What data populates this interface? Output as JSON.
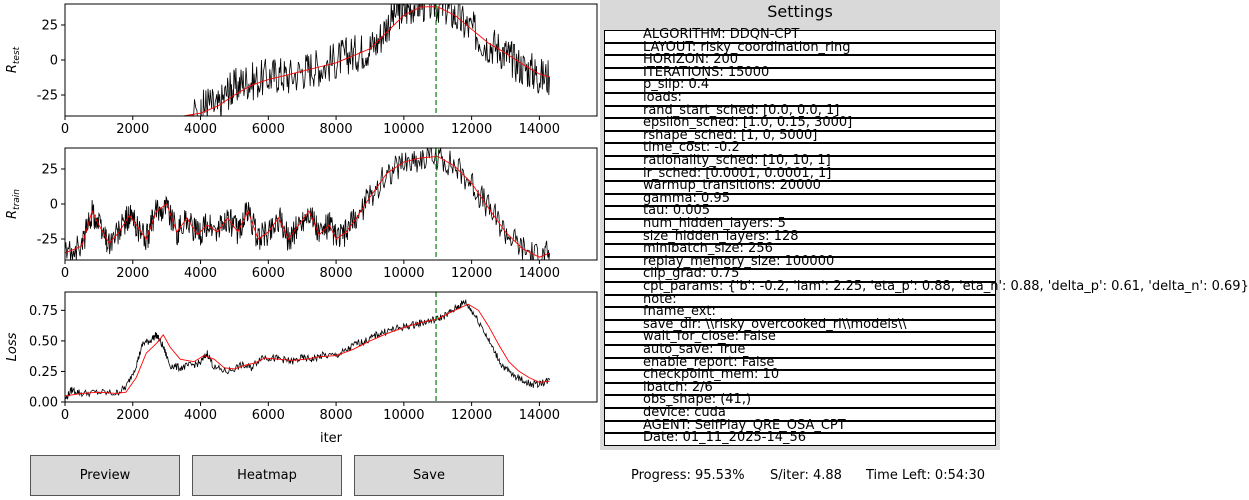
{
  "chart_data": [
    {
      "type": "line",
      "ylabel": "R_test",
      "xlim": [
        0,
        15700
      ],
      "ylim": [
        -40,
        40
      ],
      "xticks": [
        0,
        2000,
        4000,
        6000,
        8000,
        10000,
        12000,
        14000
      ],
      "yticks": [
        -25,
        0,
        25
      ],
      "vline_x": 10950,
      "raw_points": [
        [
          0,
          -40
        ],
        [
          500,
          -40
        ],
        [
          1000,
          -40
        ],
        [
          1500,
          -40
        ],
        [
          2000,
          -40
        ],
        [
          2300,
          -40
        ],
        [
          2500,
          -40
        ],
        [
          3000,
          -40
        ],
        [
          3500,
          -40
        ],
        [
          4000,
          -38
        ],
        [
          4200,
          -30
        ],
        [
          4500,
          -35
        ],
        [
          4800,
          -22
        ],
        [
          5000,
          -20
        ],
        [
          5300,
          -15
        ],
        [
          5600,
          -15
        ],
        [
          6000,
          -12
        ],
        [
          6300,
          -10
        ],
        [
          6600,
          -12
        ],
        [
          7000,
          -8
        ],
        [
          7300,
          -5
        ],
        [
          7600,
          -5
        ],
        [
          8000,
          0
        ],
        [
          8300,
          3
        ],
        [
          8600,
          5
        ],
        [
          8900,
          8
        ],
        [
          9200,
          12
        ],
        [
          9500,
          25
        ],
        [
          9800,
          35
        ],
        [
          10000,
          35
        ],
        [
          10300,
          40
        ],
        [
          10600,
          40
        ],
        [
          10950,
          40
        ],
        [
          11200,
          38
        ],
        [
          11500,
          32
        ],
        [
          11800,
          25
        ],
        [
          12100,
          20
        ],
        [
          12400,
          12
        ],
        [
          12700,
          10
        ],
        [
          13000,
          5
        ],
        [
          13200,
          0
        ],
        [
          13500,
          -5
        ],
        [
          13800,
          -8
        ],
        [
          14000,
          -12
        ],
        [
          14300,
          -12
        ]
      ],
      "smooth_points": [
        [
          0,
          -40
        ],
        [
          3500,
          -40
        ],
        [
          4000,
          -38
        ],
        [
          4500,
          -33
        ],
        [
          5000,
          -25
        ],
        [
          5500,
          -18
        ],
        [
          6000,
          -14
        ],
        [
          6500,
          -11
        ],
        [
          7000,
          -8
        ],
        [
          7500,
          -5
        ],
        [
          8000,
          -2
        ],
        [
          8500,
          3
        ],
        [
          9000,
          8
        ],
        [
          9500,
          20
        ],
        [
          10000,
          32
        ],
        [
          10500,
          38
        ],
        [
          11000,
          38
        ],
        [
          11500,
          32
        ],
        [
          12000,
          22
        ],
        [
          12500,
          12
        ],
        [
          13000,
          5
        ],
        [
          13500,
          -3
        ],
        [
          14000,
          -10
        ],
        [
          14300,
          -12
        ]
      ]
    },
    {
      "type": "line",
      "ylabel": "R_train",
      "xlim": [
        0,
        15700
      ],
      "ylim": [
        -40,
        40
      ],
      "xticks": [
        0,
        2000,
        4000,
        6000,
        8000,
        10000,
        12000,
        14000
      ],
      "yticks": [
        -25,
        0,
        25
      ],
      "vline_x": 10950,
      "smooth_points": [
        [
          0,
          -35
        ],
        [
          500,
          -30
        ],
        [
          800,
          -5
        ],
        [
          1000,
          -15
        ],
        [
          1300,
          -28
        ],
        [
          1600,
          -20
        ],
        [
          1900,
          -8
        ],
        [
          2100,
          -15
        ],
        [
          2400,
          -25
        ],
        [
          2700,
          -5
        ],
        [
          3000,
          0
        ],
        [
          3300,
          -20
        ],
        [
          3600,
          -10
        ],
        [
          3900,
          -22
        ],
        [
          4200,
          -15
        ],
        [
          4500,
          -20
        ],
        [
          4800,
          -10
        ],
        [
          5100,
          -20
        ],
        [
          5400,
          -5
        ],
        [
          5700,
          -25
        ],
        [
          6000,
          -20
        ],
        [
          6300,
          -10
        ],
        [
          6600,
          -25
        ],
        [
          6900,
          -15
        ],
        [
          7200,
          -5
        ],
        [
          7500,
          -22
        ],
        [
          7800,
          -15
        ],
        [
          8000,
          -25
        ],
        [
          8300,
          -20
        ],
        [
          8600,
          -10
        ],
        [
          9000,
          5
        ],
        [
          9500,
          22
        ],
        [
          10000,
          30
        ],
        [
          10500,
          33
        ],
        [
          11000,
          34
        ],
        [
          11500,
          27
        ],
        [
          12000,
          15
        ],
        [
          12500,
          -3
        ],
        [
          13000,
          -20
        ],
        [
          13500,
          -32
        ],
        [
          14000,
          -38
        ],
        [
          14300,
          -35
        ]
      ],
      "noise_amplitude": 10
    },
    {
      "type": "line",
      "ylabel": "Loss",
      "xlabel": "iter",
      "xlim": [
        0,
        15700
      ],
      "ylim": [
        0,
        0.9
      ],
      "xticks": [
        0,
        2000,
        4000,
        6000,
        8000,
        10000,
        12000,
        14000
      ],
      "yticks": [
        0.0,
        0.25,
        0.5,
        0.75
      ],
      "vline_x": 10950,
      "raw_points": [
        [
          0,
          0.02
        ],
        [
          200,
          0.1
        ],
        [
          500,
          0.07
        ],
        [
          1000,
          0.08
        ],
        [
          1500,
          0.07
        ],
        [
          1800,
          0.12
        ],
        [
          2100,
          0.3
        ],
        [
          2300,
          0.48
        ],
        [
          2500,
          0.5
        ],
        [
          2700,
          0.55
        ],
        [
          2900,
          0.45
        ],
        [
          3100,
          0.3
        ],
        [
          3400,
          0.28
        ],
        [
          3700,
          0.3
        ],
        [
          4000,
          0.32
        ],
        [
          4200,
          0.4
        ],
        [
          4400,
          0.28
        ],
        [
          4800,
          0.25
        ],
        [
          5200,
          0.3
        ],
        [
          5500,
          0.28
        ],
        [
          5800,
          0.37
        ],
        [
          6100,
          0.36
        ],
        [
          6400,
          0.35
        ],
        [
          6700,
          0.33
        ],
        [
          7000,
          0.36
        ],
        [
          7300,
          0.35
        ],
        [
          7600,
          0.38
        ],
        [
          8000,
          0.38
        ],
        [
          8300,
          0.42
        ],
        [
          8600,
          0.48
        ],
        [
          8900,
          0.5
        ],
        [
          9200,
          0.55
        ],
        [
          9500,
          0.58
        ],
        [
          9800,
          0.6
        ],
        [
          10100,
          0.62
        ],
        [
          10400,
          0.64
        ],
        [
          10700,
          0.66
        ],
        [
          11000,
          0.68
        ],
        [
          11300,
          0.72
        ],
        [
          11600,
          0.78
        ],
        [
          11800,
          0.82
        ],
        [
          12000,
          0.75
        ],
        [
          12300,
          0.62
        ],
        [
          12600,
          0.45
        ],
        [
          12900,
          0.3
        ],
        [
          13200,
          0.22
        ],
        [
          13500,
          0.18
        ],
        [
          13800,
          0.14
        ],
        [
          14100,
          0.16
        ],
        [
          14300,
          0.18
        ]
      ],
      "smooth_points": [
        [
          0,
          0.05
        ],
        [
          500,
          0.07
        ],
        [
          1000,
          0.08
        ],
        [
          1500,
          0.07
        ],
        [
          1800,
          0.08
        ],
        [
          2100,
          0.2
        ],
        [
          2400,
          0.4
        ],
        [
          2700,
          0.48
        ],
        [
          2900,
          0.55
        ],
        [
          3100,
          0.45
        ],
        [
          3400,
          0.35
        ],
        [
          3800,
          0.33
        ],
        [
          4100,
          0.38
        ],
        [
          4400,
          0.35
        ],
        [
          4700,
          0.28
        ],
        [
          5000,
          0.27
        ],
        [
          5300,
          0.3
        ],
        [
          5600,
          0.32
        ],
        [
          5900,
          0.36
        ],
        [
          6300,
          0.35
        ],
        [
          6700,
          0.34
        ],
        [
          7100,
          0.35
        ],
        [
          7500,
          0.37
        ],
        [
          8000,
          0.38
        ],
        [
          8500,
          0.43
        ],
        [
          9000,
          0.5
        ],
        [
          9500,
          0.56
        ],
        [
          10000,
          0.61
        ],
        [
          10500,
          0.65
        ],
        [
          11000,
          0.68
        ],
        [
          11500,
          0.75
        ],
        [
          11900,
          0.8
        ],
        [
          12200,
          0.75
        ],
        [
          12500,
          0.62
        ],
        [
          12800,
          0.47
        ],
        [
          13100,
          0.33
        ],
        [
          13400,
          0.25
        ],
        [
          13700,
          0.2
        ],
        [
          14000,
          0.16
        ],
        [
          14300,
          0.17
        ]
      ]
    }
  ],
  "settings": {
    "title": "Settings",
    "rows": [
      "ALGORITHM: DDQN-CPT",
      "LAYOUT: risky_coordination_ring",
      "HORIZON: 200",
      "ITERATIONS: 15000",
      "p_slip: 0.4",
      "loads:",
      "rand_start_sched: [0.0, 0.0, 1]",
      "epsilon_sched: [1.0, 0.15, 3000]",
      "rshape_sched: [1, 0, 5000]",
      "time_cost: -0.2",
      "rationality_sched: [10, 10, 1]",
      "lr_sched: [0.0001, 0.0001, 1]",
      "warmup_transitions: 20000",
      "gamma: 0.95",
      "tau: 0.005",
      "num_hidden_layers: 5",
      "size_hidden_layers: 128",
      "minibatch_size: 256",
      "replay_memory_size: 100000",
      "clip_grad: 0.75",
      "cpt_params: {'b': -0.2, 'lam': 2.25, 'eta_p': 0.88, 'eta_n': 0.88, 'delta_p': 0.61, 'delta_n': 0.69}",
      "note:",
      "fname_ext:",
      "save_dir: \\\\risky_overcooked_rl\\\\models\\\\",
      "wait_for_close: False",
      "auto_save: True",
      "enable_report: False",
      "checkpoint_mem: 10",
      "ibatch: 2/6",
      "obs_shape: (41,)",
      "device: cuda",
      "AGENT: SelfPlay_QRE_OSA_CPT",
      "Date: 01_11_2025-14_56"
    ]
  },
  "buttons": {
    "preview": "Preview",
    "heatmap": "Heatmap",
    "save": "Save"
  },
  "status": {
    "progress": "Progress: 95.53%",
    "s_iter": "S/iter: 4.88",
    "time_left": "Time Left: 0:54:30"
  },
  "colors": {
    "raw_line": "#000000",
    "smooth_line": "#ff0000",
    "vline": "#008000",
    "panel_bg": "#d9d9d9"
  }
}
